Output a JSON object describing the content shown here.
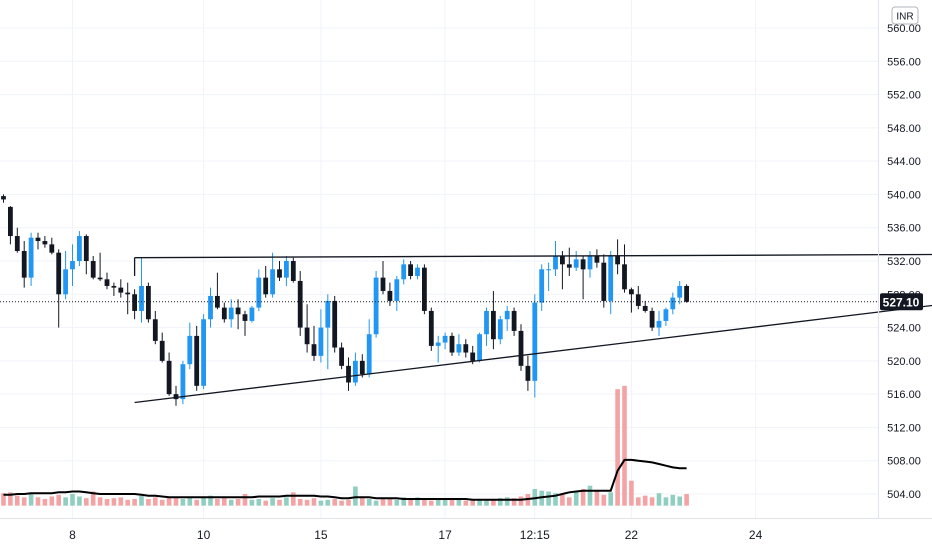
{
  "chart_data": {
    "type": "candlestick",
    "currency_label": "INR",
    "last_price": "527.10",
    "y_axis": {
      "ticks": [
        "504.00",
        "508.00",
        "512.00",
        "516.00",
        "520.00",
        "524.00",
        "528.00",
        "532.00",
        "536.00",
        "540.00",
        "544.00",
        "548.00",
        "552.00",
        "556.00",
        "560.00"
      ],
      "range": [
        501.5,
        563
      ]
    },
    "x_axis": {
      "ticks": [
        "8",
        "10",
        "15",
        "17",
        "12:15",
        "22",
        "24"
      ],
      "bar_index_of_ticks": [
        10,
        29,
        46,
        64,
        77,
        91,
        109
      ]
    },
    "candles": [
      [
        539.8,
        540.0,
        539.0,
        539.4
      ],
      [
        538.5,
        538.6,
        534.0,
        535.0
      ],
      [
        535.0,
        536.0,
        533.0,
        533.2
      ],
      [
        533.2,
        534.4,
        528.8,
        530.0
      ],
      [
        530.0,
        535.4,
        529.0,
        534.8
      ],
      [
        534.8,
        535.4,
        533.4,
        534.4
      ],
      [
        534.4,
        535.0,
        533.6,
        534.0
      ],
      [
        534.0,
        534.8,
        532.8,
        533.0
      ],
      [
        533.0,
        533.4,
        524.0,
        528.0
      ],
      [
        528.0,
        533.2,
        527.4,
        531.0
      ],
      [
        531.0,
        534.0,
        529.0,
        532.0
      ],
      [
        532.0,
        535.6,
        531.4,
        535.0
      ],
      [
        535.0,
        535.2,
        530.4,
        532.0
      ],
      [
        532.0,
        532.6,
        529.8,
        530.0
      ],
      [
        530.0,
        533.0,
        529.6,
        529.8
      ],
      [
        529.8,
        530.6,
        528.6,
        529.0
      ],
      [
        529.0,
        529.4,
        527.8,
        528.8
      ],
      [
        528.8,
        529.8,
        527.6,
        528.2
      ],
      [
        528.2,
        529.4,
        525.6,
        528.0
      ],
      [
        528.0,
        528.6,
        525.0,
        526.0
      ],
      [
        526.0,
        532.4,
        524.6,
        529.0
      ],
      [
        529.0,
        529.4,
        524.6,
        525.0
      ],
      [
        525.0,
        526.0,
        522.0,
        522.4
      ],
      [
        522.4,
        523.4,
        519.8,
        520.0
      ],
      [
        520.0,
        521.0,
        515.8,
        516.0
      ],
      [
        516.0,
        517.0,
        514.6,
        515.4
      ],
      [
        515.4,
        520.0,
        514.8,
        519.6
      ],
      [
        519.6,
        524.6,
        519.0,
        523.0
      ],
      [
        523.0,
        524.2,
        516.4,
        517.0
      ],
      [
        517.0,
        525.6,
        516.6,
        525.0
      ],
      [
        525.0,
        528.8,
        524.0,
        527.8
      ],
      [
        527.8,
        530.6,
        526.2,
        526.4
      ],
      [
        526.4,
        527.0,
        524.6,
        525.0
      ],
      [
        525.0,
        527.4,
        524.0,
        526.4
      ],
      [
        526.4,
        527.4,
        523.8,
        525.6
      ],
      [
        525.6,
        526.0,
        523.0,
        524.8
      ],
      [
        524.8,
        526.6,
        524.6,
        526.4
      ],
      [
        526.4,
        531.0,
        526.0,
        530.0
      ],
      [
        530.0,
        531.4,
        527.6,
        528.0
      ],
      [
        528.0,
        533.0,
        527.6,
        531.0
      ],
      [
        531.0,
        532.0,
        529.6,
        530.0
      ],
      [
        530.0,
        532.6,
        529.0,
        532.0
      ],
      [
        532.0,
        532.4,
        529.4,
        529.6
      ],
      [
        529.6,
        530.8,
        523.0,
        524.0
      ],
      [
        524.0,
        526.8,
        521.0,
        522.0
      ],
      [
        522.0,
        524.2,
        520.0,
        520.6
      ],
      [
        520.6,
        526.2,
        519.8,
        524.0
      ],
      [
        524.0,
        528.0,
        519.0,
        527.2
      ],
      [
        527.2,
        527.8,
        521.0,
        521.6
      ],
      [
        521.6,
        522.2,
        519.0,
        519.4
      ],
      [
        519.4,
        520.4,
        516.4,
        517.4
      ],
      [
        517.4,
        521.0,
        517.0,
        520.0
      ],
      [
        520.0,
        520.8,
        518.0,
        518.4
      ],
      [
        518.4,
        525.0,
        518.0,
        523.2
      ],
      [
        523.2,
        530.8,
        522.8,
        530.0
      ],
      [
        530.0,
        532.0,
        528.0,
        528.4
      ],
      [
        528.4,
        529.4,
        526.6,
        527.2
      ],
      [
        527.2,
        530.2,
        526.0,
        529.8
      ],
      [
        529.8,
        532.2,
        529.2,
        531.6
      ],
      [
        531.6,
        532.0,
        529.8,
        530.2
      ],
      [
        530.2,
        531.6,
        529.8,
        531.2
      ],
      [
        531.2,
        531.6,
        525.6,
        526.0
      ],
      [
        526.0,
        526.4,
        521.2,
        521.8
      ],
      [
        521.8,
        523.0,
        519.8,
        522.2
      ],
      [
        522.2,
        523.4,
        521.4,
        523.0
      ],
      [
        523.0,
        523.4,
        520.6,
        521.0
      ],
      [
        521.0,
        523.2,
        520.6,
        522.0
      ],
      [
        522.0,
        522.6,
        520.4,
        521.0
      ],
      [
        521.0,
        521.8,
        519.6,
        520.0
      ],
      [
        520.0,
        523.4,
        519.8,
        523.2
      ],
      [
        523.2,
        526.4,
        521.8,
        526.0
      ],
      [
        526.0,
        528.4,
        521.4,
        522.6
      ],
      [
        522.6,
        525.4,
        522.0,
        525.0
      ],
      [
        525.0,
        526.6,
        523.6,
        526.0
      ],
      [
        526.0,
        526.4,
        523.0,
        523.6
      ],
      [
        523.6,
        524.4,
        518.8,
        519.4
      ],
      [
        519.4,
        520.6,
        516.4,
        517.6
      ],
      [
        517.6,
        528.0,
        515.6,
        527.0
      ],
      [
        527.0,
        531.6,
        526.0,
        531.0
      ],
      [
        531.0,
        531.8,
        528.4,
        531.0
      ],
      [
        531.0,
        534.4,
        530.2,
        532.6
      ],
      [
        532.6,
        533.2,
        528.6,
        531.6
      ],
      [
        531.6,
        533.6,
        530.2,
        531.2
      ],
      [
        531.2,
        533.2,
        530.8,
        532.2
      ],
      [
        532.2,
        532.6,
        527.4,
        531.0
      ],
      [
        531.0,
        533.2,
        530.0,
        532.6
      ],
      [
        532.6,
        533.4,
        531.2,
        531.8
      ],
      [
        531.8,
        532.8,
        526.4,
        527.2
      ],
      [
        527.2,
        533.2,
        525.6,
        532.6
      ],
      [
        532.6,
        534.6,
        530.4,
        531.6
      ],
      [
        531.6,
        534.0,
        528.2,
        528.6
      ],
      [
        528.6,
        528.8,
        525.8,
        528.0
      ],
      [
        528.0,
        529.0,
        526.2,
        526.6
      ],
      [
        526.6,
        527.2,
        525.8,
        526.0
      ],
      [
        526.0,
        526.4,
        523.6,
        524.0
      ],
      [
        524.0,
        526.0,
        523.0,
        524.8
      ],
      [
        524.8,
        526.4,
        524.2,
        526.2
      ],
      [
        526.2,
        528.2,
        525.6,
        527.6
      ],
      [
        527.6,
        529.6,
        526.8,
        529.0
      ],
      [
        529.0,
        529.2,
        527.0,
        527.1
      ]
    ],
    "volume_scale": [
      502.6,
      517.0
    ],
    "volume": [
      1.5,
      1.6,
      1.2,
      1.0,
      1.4,
      1.0,
      0.8,
      1.1,
      1.3,
      1.0,
      1.4,
      1.1,
      0.9,
      1.7,
      1.0,
      0.8,
      0.9,
      1.0,
      0.7,
      0.8,
      1.2,
      0.8,
      1.0,
      0.7,
      1.0,
      0.9,
      0.8,
      0.9,
      0.7,
      1.0,
      1.2,
      0.8,
      0.9,
      0.7,
      0.8,
      1.4,
      0.7,
      0.8,
      0.6,
      0.9,
      0.7,
      1.0,
      1.6,
      0.8,
      0.7,
      0.9,
      0.6,
      0.7,
      0.8,
      0.6,
      0.7,
      2.3,
      0.9,
      0.8,
      0.6,
      1.0,
      0.8,
      0.7,
      1.0,
      0.9,
      1.0,
      0.8,
      0.6,
      0.7,
      0.9,
      0.7,
      0.8,
      0.6,
      0.7,
      0.8,
      0.6,
      0.7,
      0.9,
      1.0,
      0.9,
      1.1,
      1.4,
      2.0,
      1.8,
      1.7,
      1.5,
      1.3,
      1.0,
      1.6,
      2.0,
      2.4,
      1.8,
      1.3,
      1.6,
      14.0,
      14.4,
      3.0,
      1.0,
      1.2,
      1.0,
      1.5,
      1.0,
      1.3,
      1.1,
      1.4
    ],
    "volume_ma": [
      1.3,
      1.3,
      1.4,
      1.4,
      1.5,
      1.5,
      1.5,
      1.5,
      1.6,
      1.6,
      1.7,
      1.7,
      1.6,
      1.5,
      1.4,
      1.4,
      1.4,
      1.4,
      1.4,
      1.4,
      1.3,
      1.2,
      1.2,
      1.1,
      1.0,
      1.0,
      1.0,
      1.0,
      1.0,
      1.0,
      1.0,
      1.0,
      1.0,
      1.0,
      1.0,
      1.0,
      1.0,
      1.1,
      1.1,
      1.1,
      1.1,
      1.2,
      1.2,
      1.2,
      1.2,
      1.2,
      1.1,
      1.1,
      1.0,
      0.9,
      0.9,
      1.0,
      1.0,
      1.0,
      0.9,
      0.9,
      0.9,
      0.9,
      0.8,
      0.8,
      0.8,
      0.8,
      0.8,
      0.8,
      0.8,
      0.8,
      0.8,
      0.8,
      0.7,
      0.7,
      0.7,
      0.7,
      0.7,
      0.7,
      0.7,
      0.7,
      0.8,
      0.9,
      1.0,
      1.1,
      1.2,
      1.4,
      1.6,
      1.7,
      1.8,
      1.8,
      1.8,
      1.8,
      1.8,
      4.2,
      5.5,
      5.5,
      5.4,
      5.3,
      5.2,
      5.0,
      4.8,
      4.6,
      4.5,
      4.5
    ],
    "trendlines": [
      {
        "name": "resistance",
        "from": [
          19,
          532.4
        ],
        "to": [
          140,
          532.8
        ]
      },
      {
        "name": "support",
        "from": [
          19,
          515.0
        ],
        "to": [
          140,
          527.2
        ]
      }
    ],
    "colors": {
      "up": "#2196f3",
      "down": "#131722",
      "volume_up": "#8fcec0",
      "volume_down": "#f4a3a5",
      "volume_ma": "#000000",
      "grid": "#f0f3fa",
      "price_line": "#131722",
      "badge": "#131722"
    }
  }
}
